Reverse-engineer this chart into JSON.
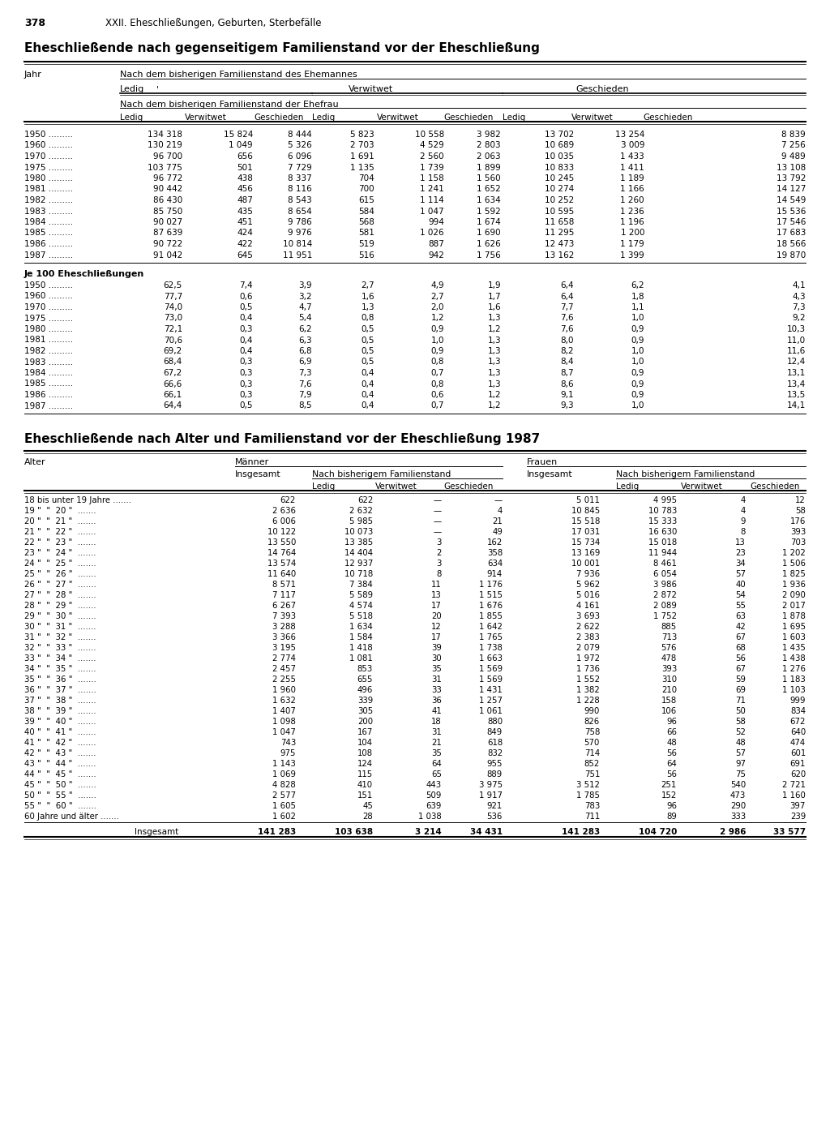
{
  "page_number": "378",
  "chapter_header": "XXII. Eheschließungen, Geburten, Sterbefälle",
  "title1": "Eheschließende nach gegenseitigem Familienstand vor der Eheschließung",
  "title2": "Eheschließende nach Alter und Familienstand vor der Eheschließung 1987",
  "table1": {
    "years": [
      "1950",
      "1960",
      "1970",
      "1975",
      "1980",
      "1981",
      "1982",
      "1983",
      "1984",
      "1985",
      "1986",
      "1987"
    ],
    "data": [
      [
        "134 318",
        "15 824",
        "8 444",
        "5 823",
        "10 558",
        "3 982",
        "13 702",
        "13 254",
        "8 839"
      ],
      [
        "130 219",
        "1 049",
        "5 326",
        "2 703",
        "4 529",
        "2 803",
        "10 689",
        "3 009",
        "7 256"
      ],
      [
        "96 700",
        "656",
        "6 096",
        "1 691",
        "2 560",
        "2 063",
        "10 035",
        "1 433",
        "9 489"
      ],
      [
        "103 775",
        "501",
        "7 729",
        "1 135",
        "1 739",
        "1 899",
        "10 833",
        "1 411",
        "13 108"
      ],
      [
        "96 772",
        "438",
        "8 337",
        "704",
        "1 158",
        "1 560",
        "10 245",
        "1 189",
        "13 792"
      ],
      [
        "90 442",
        "456",
        "8 116",
        "700",
        "1 241",
        "1 652",
        "10 274",
        "1 166",
        "14 127"
      ],
      [
        "86 430",
        "487",
        "8 543",
        "615",
        "1 114",
        "1 634",
        "10 252",
        "1 260",
        "14 549"
      ],
      [
        "85 750",
        "435",
        "8 654",
        "584",
        "1 047",
        "1 592",
        "10 595",
        "1 236",
        "15 536"
      ],
      [
        "90 027",
        "451",
        "9 786",
        "568",
        "994",
        "1 674",
        "11 658",
        "1 196",
        "17 546"
      ],
      [
        "87 639",
        "424",
        "9 976",
        "581",
        "1 026",
        "1 690",
        "11 295",
        "1 200",
        "17 683"
      ],
      [
        "90 722",
        "422",
        "10 814",
        "519",
        "887",
        "1 626",
        "12 473",
        "1 179",
        "18 566"
      ],
      [
        "91 042",
        "645",
        "11 951",
        "516",
        "942",
        "1 756",
        "13 162",
        "1 399",
        "19 870"
      ]
    ],
    "subtitle2": "Je 100 Eheschließungen",
    "years2": [
      "1950",
      "1960",
      "1970",
      "1975",
      "1980",
      "1981",
      "1982",
      "1983",
      "1984",
      "1985",
      "1986",
      "1987"
    ],
    "data2": [
      [
        "62,5",
        "7,4",
        "3,9",
        "2,7",
        "4,9",
        "1,9",
        "6,4",
        "6,2",
        "4,1"
      ],
      [
        "77,7",
        "0,6",
        "3,2",
        "1,6",
        "2,7",
        "1,7",
        "6,4",
        "1,8",
        "4,3"
      ],
      [
        "74,0",
        "0,5",
        "4,7",
        "1,3",
        "2,0",
        "1,6",
        "7,7",
        "1,1",
        "7,3"
      ],
      [
        "73,0",
        "0,4",
        "5,4",
        "0,8",
        "1,2",
        "1,3",
        "7,6",
        "1,0",
        "9,2"
      ],
      [
        "72,1",
        "0,3",
        "6,2",
        "0,5",
        "0,9",
        "1,2",
        "7,6",
        "0,9",
        "10,3"
      ],
      [
        "70,6",
        "0,4",
        "6,3",
        "0,5",
        "1,0",
        "1,3",
        "8,0",
        "0,9",
        "11,0"
      ],
      [
        "69,2",
        "0,4",
        "6,8",
        "0,5",
        "0,9",
        "1,3",
        "8,2",
        "1,0",
        "11,6"
      ],
      [
        "68,4",
        "0,3",
        "6,9",
        "0,5",
        "0,8",
        "1,3",
        "8,4",
        "1,0",
        "12,4"
      ],
      [
        "67,2",
        "0,3",
        "7,3",
        "0,4",
        "0,7",
        "1,3",
        "8,7",
        "0,9",
        "13,1"
      ],
      [
        "66,6",
        "0,3",
        "7,6",
        "0,4",
        "0,8",
        "1,3",
        "8,6",
        "0,9",
        "13,4"
      ],
      [
        "66,1",
        "0,3",
        "7,9",
        "0,4",
        "0,6",
        "1,2",
        "9,1",
        "0,9",
        "13,5"
      ],
      [
        "64,4",
        "0,5",
        "8,5",
        "0,4",
        "0,7",
        "1,2",
        "9,3",
        "1,0",
        "14,1"
      ]
    ]
  },
  "table2": {
    "age_labels": [
      "18 bis unter 19 Jahre .......",
      "19 \"  \"  20 \"  .......",
      "20 \"  \"  21 \"  .......",
      "21 \"  \"  22 \"  .......",
      "22 \"  \"  23 \"  .......",
      "23 \"  \"  24 \"  .......",
      "24 \"  \"  25 \"  .......",
      "25 \"  \"  26 \"  .......",
      "26 \"  \"  27 \"  .......",
      "27 \"  \"  28 \"  .......",
      "28 \"  \"  29 \"  .......",
      "29 \"  \"  30 \"  .......",
      "30 \"  \"  31 \"  .......",
      "31 \"  \"  32 \"  .......",
      "32 \"  \"  33 \"  .......",
      "33 \"  \"  34 \"  .......",
      "34 \"  \"  35 \"  .......",
      "35 \"  \"  36 \"  .......",
      "36 \"  \"  37 \"  .......",
      "37 \"  \"  38 \"  .......",
      "38 \"  \"  39 \"  .......",
      "39 \"  \"  40 \"  .......",
      "40 \"  \"  41 \"  .......",
      "41 \"  \"  42 \"  .......",
      "42 \"  \"  43 \"  .......",
      "43 \"  \"  44 \"  .......",
      "44 \"  \"  45 \"  .......",
      "45 \"  \"  50 \"  .......",
      "50 \"  \"  55 \"  .......",
      "55 \"  \"  60 \"  .......",
      "60 Jahre und älter ......."
    ],
    "data": [
      [
        "622",
        "622",
        "—",
        "—",
        "5 011",
        "4 995",
        "4",
        "12"
      ],
      [
        "2 636",
        "2 632",
        "—",
        "4",
        "10 845",
        "10 783",
        "4",
        "58"
      ],
      [
        "6 006",
        "5 985",
        "—",
        "21",
        "15 518",
        "15 333",
        "9",
        "176"
      ],
      [
        "10 122",
        "10 073",
        "—",
        "49",
        "17 031",
        "16 630",
        "8",
        "393"
      ],
      [
        "13 550",
        "13 385",
        "3",
        "162",
        "15 734",
        "15 018",
        "13",
        "703"
      ],
      [
        "14 764",
        "14 404",
        "2",
        "358",
        "13 169",
        "11 944",
        "23",
        "1 202"
      ],
      [
        "13 574",
        "12 937",
        "3",
        "634",
        "10 001",
        "8 461",
        "34",
        "1 506"
      ],
      [
        "11 640",
        "10 718",
        "8",
        "914",
        "7 936",
        "6 054",
        "57",
        "1 825"
      ],
      [
        "8 571",
        "7 384",
        "11",
        "1 176",
        "5 962",
        "3 986",
        "40",
        "1 936"
      ],
      [
        "7 117",
        "5 589",
        "13",
        "1 515",
        "5 016",
        "2 872",
        "54",
        "2 090"
      ],
      [
        "6 267",
        "4 574",
        "17",
        "1 676",
        "4 161",
        "2 089",
        "55",
        "2 017"
      ],
      [
        "7 393",
        "5 518",
        "20",
        "1 855",
        "3 693",
        "1 752",
        "63",
        "1 878"
      ],
      [
        "3 288",
        "1 634",
        "12",
        "1 642",
        "2 622",
        "885",
        "42",
        "1 695"
      ],
      [
        "3 366",
        "1 584",
        "17",
        "1 765",
        "2 383",
        "713",
        "67",
        "1 603"
      ],
      [
        "3 195",
        "1 418",
        "39",
        "1 738",
        "2 079",
        "576",
        "68",
        "1 435"
      ],
      [
        "2 774",
        "1 081",
        "30",
        "1 663",
        "1 972",
        "478",
        "56",
        "1 438"
      ],
      [
        "2 457",
        "853",
        "35",
        "1 569",
        "1 736",
        "393",
        "67",
        "1 276"
      ],
      [
        "2 255",
        "655",
        "31",
        "1 569",
        "1 552",
        "310",
        "59",
        "1 183"
      ],
      [
        "1 960",
        "496",
        "33",
        "1 431",
        "1 382",
        "210",
        "69",
        "1 103"
      ],
      [
        "1 632",
        "339",
        "36",
        "1 257",
        "1 228",
        "158",
        "71",
        "999"
      ],
      [
        "1 407",
        "305",
        "41",
        "1 061",
        "990",
        "106",
        "50",
        "834"
      ],
      [
        "1 098",
        "200",
        "18",
        "880",
        "826",
        "96",
        "58",
        "672"
      ],
      [
        "1 047",
        "167",
        "31",
        "849",
        "758",
        "66",
        "52",
        "640"
      ],
      [
        "743",
        "104",
        "21",
        "618",
        "570",
        "48",
        "48",
        "474"
      ],
      [
        "975",
        "108",
        "35",
        "832",
        "714",
        "56",
        "57",
        "601"
      ],
      [
        "1 143",
        "124",
        "64",
        "955",
        "852",
        "64",
        "97",
        "691"
      ],
      [
        "1 069",
        "115",
        "65",
        "889",
        "751",
        "56",
        "75",
        "620"
      ],
      [
        "4 828",
        "410",
        "443",
        "3 975",
        "3 512",
        "251",
        "540",
        "2 721"
      ],
      [
        "2 577",
        "151",
        "509",
        "1 917",
        "1 785",
        "152",
        "473",
        "1 160"
      ],
      [
        "1 605",
        "45",
        "639",
        "921",
        "783",
        "96",
        "290",
        "397"
      ],
      [
        "1 602",
        "28",
        "1 038",
        "536",
        "711",
        "89",
        "333",
        "239"
      ]
    ],
    "total_row": [
      "141 283",
      "103 638",
      "3 214",
      "34 431",
      "141 283",
      "104 720",
      "2 986",
      "33 577"
    ]
  }
}
